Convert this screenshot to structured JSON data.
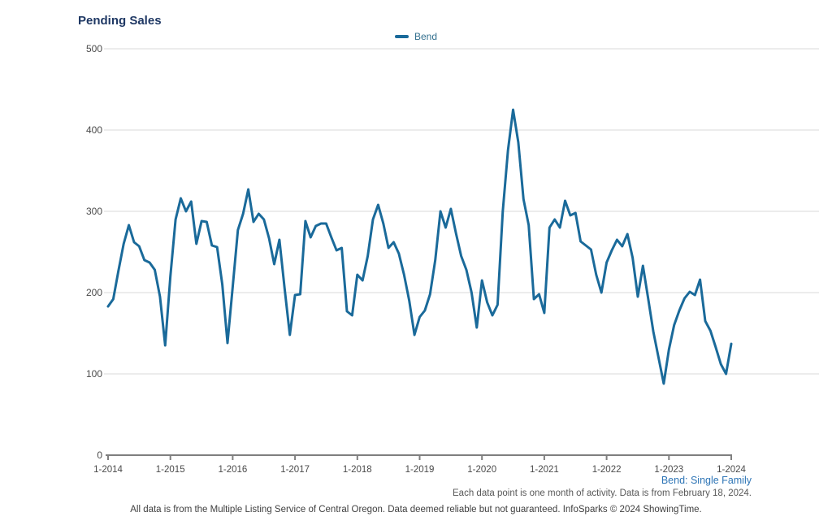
{
  "title": "Pending Sales",
  "legend": {
    "label": "Bend",
    "color": "#1A6A9A"
  },
  "chart_data": {
    "type": "line",
    "title": "Pending Sales",
    "x_tick_labels": [
      "1-2014",
      "1-2015",
      "1-2016",
      "1-2017",
      "1-2018",
      "1-2019",
      "1-2020",
      "1-2021",
      "1-2022",
      "1-2023",
      "1-2024"
    ],
    "x_unit": "month",
    "x_range_months": 120,
    "y_ticks": [
      0,
      100,
      200,
      300,
      400,
      500
    ],
    "ylim": [
      0,
      500
    ],
    "grid": "horizontal",
    "legend_position": "top-center",
    "series": [
      {
        "name": "Bend",
        "color": "#1A6A9A",
        "values": [
          183,
          192,
          227,
          260,
          283,
          262,
          257,
          240,
          237,
          228,
          195,
          135,
          220,
          290,
          316,
          300,
          312,
          260,
          288,
          287,
          258,
          256,
          210,
          138,
          207,
          277,
          297,
          327,
          287,
          297,
          290,
          267,
          235,
          265,
          205,
          148,
          197,
          198,
          288,
          268,
          282,
          285,
          285,
          268,
          252,
          255,
          177,
          172,
          222,
          215,
          245,
          290,
          308,
          285,
          255,
          262,
          248,
          222,
          190,
          148,
          170,
          178,
          198,
          240,
          300,
          280,
          303,
          273,
          245,
          228,
          200,
          157,
          215,
          188,
          172,
          185,
          300,
          375,
          425,
          385,
          315,
          283,
          192,
          198,
          175,
          280,
          290,
          280,
          313,
          295,
          298,
          263,
          258,
          253,
          222,
          200,
          237,
          252,
          265,
          257,
          272,
          243,
          195,
          233,
          193,
          152,
          120,
          88,
          130,
          160,
          178,
          193,
          201,
          197,
          216,
          165,
          153,
          133,
          112,
          100,
          137
        ]
      }
    ]
  },
  "footer": {
    "series_note": "Bend: Single Family",
    "data_note": "Each data point is one month of activity. Data is from February 18, 2024.",
    "disclaimer": "All data is from the Multiple Listing Service of Central Oregon. Data deemed reliable but not guaranteed. InfoSparks © 2024 ShowingTime."
  },
  "colors": {
    "title": "#1F3864",
    "line": "#1A6A9A",
    "legend_text": "#33708F",
    "tick_label": "#4A4A4A",
    "gridline": "#D8D8D8",
    "axis": "#7F7F7F",
    "series_note": "#2E75B6",
    "data_note": "#595959",
    "disclaimer": "#404040"
  }
}
